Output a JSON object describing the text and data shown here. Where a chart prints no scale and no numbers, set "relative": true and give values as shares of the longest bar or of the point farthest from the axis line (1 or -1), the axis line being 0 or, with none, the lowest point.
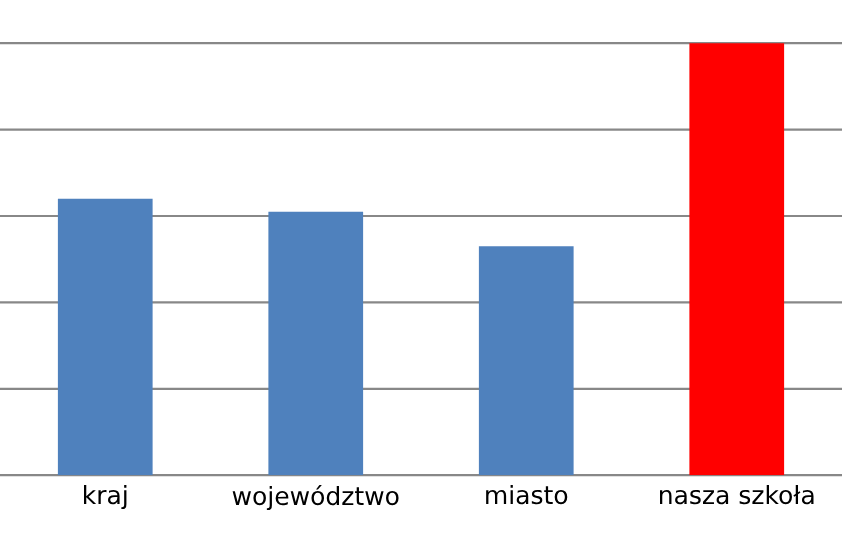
{
  "chart_data": {
    "type": "bar",
    "relative": true,
    "categories": [
      "kraj",
      "województwo",
      "miasto",
      "nasza szkoła"
    ],
    "values": [
      0.64,
      0.61,
      0.53,
      1
    ],
    "colors": [
      "#4f81bd",
      "#4f81bd",
      "#4f81bd",
      "#ff0000"
    ],
    "grid": "y",
    "legend": false
  }
}
